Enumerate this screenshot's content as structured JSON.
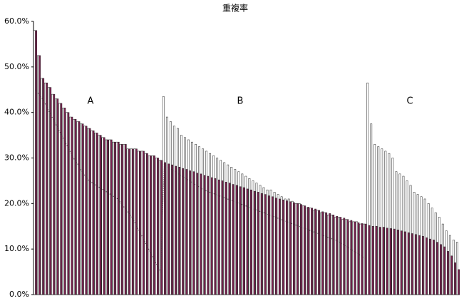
{
  "chart_data": {
    "type": "bar",
    "title": "重複率",
    "annotations": [
      "A",
      "B",
      "C"
    ],
    "ylim": [
      0,
      60
    ],
    "yticks": [
      {
        "value": 0,
        "label": "0.0%"
      },
      {
        "value": 10,
        "label": "10.0%"
      },
      {
        "value": 20,
        "label": "20.0%"
      },
      {
        "value": 30,
        "label": "30.0%"
      },
      {
        "value": 40,
        "label": "40.0%"
      },
      {
        "value": 50,
        "label": "50.0%"
      },
      {
        "value": 60,
        "label": "60.0%"
      }
    ],
    "series": [
      {
        "color": "#ffffff",
        "values": [
          58,
          52.5,
          47.5,
          46.5,
          45.5,
          44,
          43,
          42,
          41,
          40,
          39,
          38.5,
          38,
          37.5,
          37,
          36.5,
          36,
          35.5,
          35,
          34.5,
          34,
          34,
          33.5,
          33.5,
          33,
          33,
          32,
          32,
          32,
          31.5,
          31.5,
          31,
          30.5,
          30.5,
          30,
          29.5,
          43.5,
          39,
          38,
          37,
          36.5,
          35,
          34.5,
          34,
          33.5,
          33,
          32.5,
          32,
          31.5,
          31,
          30.5,
          30,
          29.5,
          29,
          28.5,
          28,
          27.5,
          27,
          26.5,
          26,
          25.5,
          25,
          24.5,
          24,
          23.5,
          23,
          23,
          22.5,
          22,
          21.5,
          21,
          21,
          20.5,
          20,
          20,
          19.5,
          19,
          19,
          18.5,
          18.5,
          18,
          18,
          17.5,
          17.5,
          17,
          17,
          16.5,
          16.5,
          16,
          16,
          16,
          15.5,
          15.5,
          46.5,
          37.5,
          33,
          32.5,
          32,
          31.5,
          31,
          30,
          27,
          26.5,
          26,
          25,
          24,
          22.5,
          22,
          21.5,
          21,
          20,
          19,
          18,
          17,
          15.5,
          14,
          13,
          12,
          11.5
        ]
      },
      {
        "color": "#7b2150",
        "values": [
          58,
          52.5,
          47.5,
          46.5,
          45.5,
          44,
          43,
          42,
          41,
          40,
          39,
          38.5,
          38,
          37.5,
          37,
          36.5,
          36,
          35.5,
          35,
          34.5,
          34,
          34,
          33.5,
          33.5,
          33,
          33,
          32,
          32,
          32,
          31.5,
          31.5,
          31,
          30.5,
          30.5,
          30,
          29.5,
          29,
          28.7,
          28.5,
          28.2,
          28,
          27.7,
          27.5,
          27.2,
          27,
          26.7,
          26.5,
          26.2,
          26,
          25.7,
          25.5,
          25.2,
          25,
          24.7,
          24.5,
          24.2,
          24,
          23.7,
          23.5,
          23.2,
          23,
          22.7,
          22.5,
          22.2,
          22,
          21.7,
          21.5,
          21.2,
          21,
          20.8,
          20.6,
          20.4,
          20.2,
          20,
          19.8,
          19.5,
          19.2,
          19,
          18.8,
          18.5,
          18.2,
          18,
          17.8,
          17.5,
          17.2,
          17,
          16.8,
          16.5,
          16.3,
          16,
          15.8,
          15.6,
          15.5,
          15.2,
          15,
          15,
          14.8,
          14.8,
          14.6,
          14.5,
          14.4,
          14.2,
          14,
          13.8,
          13.6,
          13.4,
          13.2,
          13,
          12.8,
          12.5,
          12.2,
          12,
          11.5,
          11,
          10.5,
          9.5,
          8.5,
          7,
          5.5
        ]
      },
      {
        "type": "line",
        "color": "#333333",
        "values": [
          45,
          44,
          43,
          41.5,
          40,
          38.5,
          37,
          35.5,
          34,
          32.5,
          31,
          29.5,
          28.5,
          27,
          26,
          25,
          24.5,
          24,
          23.5,
          23,
          22.5,
          22,
          21.5,
          21,
          20,
          19,
          18,
          17,
          15.5,
          14,
          12.5,
          11,
          9.5,
          8,
          6.5,
          5,
          28.5,
          28,
          27.5,
          27,
          26.5,
          26,
          25.5,
          25,
          24.5,
          24,
          23.5,
          23,
          22.7,
          22.4,
          22.1,
          21.8,
          21.5,
          21.2,
          20.9,
          20.6,
          20.3,
          20,
          19.7,
          19.4,
          19.1,
          18.8,
          18.5,
          18.2,
          17.9,
          17.6,
          17.3,
          17,
          16.7,
          16.4,
          16.1,
          15.8,
          15.5,
          15.2,
          14.9,
          14.6,
          14.3,
          14,
          13.7,
          13.4,
          13.1,
          12.8,
          12.5,
          12.2,
          11.9,
          11.5,
          11,
          10.5,
          10,
          9.5,
          9,
          8.5,
          8,
          null,
          null,
          null,
          null,
          null,
          null,
          null,
          null,
          null,
          null,
          null,
          null,
          null,
          null,
          null,
          null,
          null,
          null,
          null,
          null,
          null,
          null,
          null,
          null,
          null,
          null
        ]
      }
    ]
  }
}
